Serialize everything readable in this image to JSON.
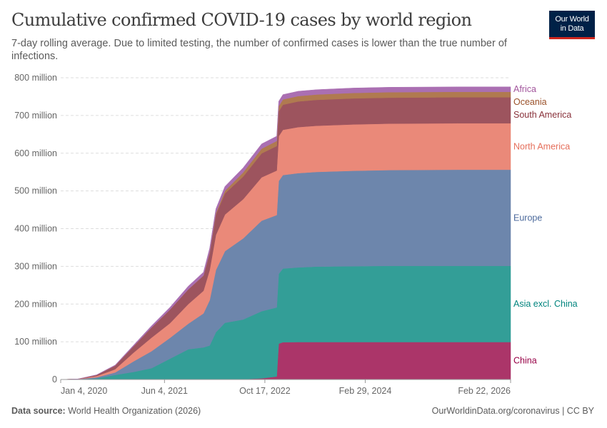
{
  "header": {
    "title": "Cumulative confirmed COVID-19 cases by world region",
    "subtitle": "7-day rolling average. Due to limited testing, the number of confirmed cases is lower than the true number of infections.",
    "logo_line1": "Our World",
    "logo_line2": "in Data"
  },
  "footer": {
    "source_label": "Data source:",
    "source": "World Health Organization (2026)",
    "url": "OurWorldinData.org/coronavirus | CC BY"
  },
  "chart_data": {
    "type": "area",
    "stacked": true,
    "title": "Cumulative confirmed COVID-19 cases by world region",
    "ylim": [
      0,
      800
    ],
    "y_unit": "million",
    "y_ticks": [
      {
        "value": 0,
        "label": "0"
      },
      {
        "value": 100,
        "label": "100 million"
      },
      {
        "value": 200,
        "label": "200 million"
      },
      {
        "value": 300,
        "label": "300 million"
      },
      {
        "value": 400,
        "label": "400 million"
      },
      {
        "value": 500,
        "label": "500 million"
      },
      {
        "value": 600,
        "label": "600 million"
      },
      {
        "value": 700,
        "label": "700 million"
      },
      {
        "value": 800,
        "label": "800 million"
      }
    ],
    "x_range": [
      "2020-01-04",
      "2026-02-22"
    ],
    "x_ticks": [
      {
        "date": "2020-01-04",
        "label": "Jan 4, 2020"
      },
      {
        "date": "2021-06-04",
        "label": "Jun 4, 2021"
      },
      {
        "date": "2022-10-17",
        "label": "Oct 17, 2022"
      },
      {
        "date": "2024-02-29",
        "label": "Feb 29, 2024"
      },
      {
        "date": "2026-02-22",
        "label": "Feb 22, 2026"
      }
    ],
    "grid": "horizontal dashed",
    "legend": "right (inline labels)",
    "x": [
      "2020-01-04",
      "2020-04-01",
      "2020-07-01",
      "2020-10-01",
      "2021-01-01",
      "2021-04-01",
      "2021-07-01",
      "2021-10-01",
      "2021-12-15",
      "2022-01-15",
      "2022-02-15",
      "2022-04-01",
      "2022-07-01",
      "2022-10-01",
      "2022-12-15",
      "2022-12-25",
      "2023-01-15",
      "2023-04-01",
      "2023-07-01",
      "2024-01-01",
      "2024-07-01",
      "2025-06-01",
      "2026-02-22"
    ],
    "series": [
      {
        "name": "China",
        "color": "#ab3569",
        "label_color": "#970046",
        "values": [
          0,
          0.08,
          0.08,
          0.09,
          0.1,
          0.1,
          0.1,
          0.1,
          0.1,
          0.1,
          0.15,
          0.3,
          1,
          3,
          8,
          95,
          99,
          99.2,
          99.3,
          99.3,
          99.3,
          99.3,
          99.3
        ]
      },
      {
        "name": "Asia excl. China",
        "color": "#339e97",
        "label_color": "#00847e",
        "values": [
          0,
          0.3,
          3,
          12,
          20,
          30,
          55,
          80,
          85,
          90,
          125,
          150,
          158,
          178,
          183,
          185,
          195,
          198,
          200,
          201,
          202,
          202,
          202
        ]
      },
      {
        "name": "Europe",
        "color": "#6d86ac",
        "label_color": "#4c6a9c",
        "values": [
          0,
          0.8,
          2.8,
          6.5,
          28,
          45,
          55,
          68,
          90,
          120,
          165,
          190,
          215,
          240,
          245,
          246,
          248,
          250,
          251,
          253,
          254,
          255,
          255
        ]
      },
      {
        "name": "North America",
        "color": "#ea8979",
        "label_color": "#e56e5a",
        "values": [
          0,
          0.2,
          3.2,
          8.5,
          23,
          36,
          39,
          52,
          60,
          80,
          93,
          97,
          104,
          115,
          118,
          119,
          120,
          122,
          122.5,
          123,
          123,
          123,
          123
        ]
      },
      {
        "name": "South America",
        "color": "#9d545e",
        "label_color": "#883039",
        "values": [
          0,
          0.03,
          2.8,
          9.5,
          17,
          27,
          36,
          39,
          40,
          45,
          54,
          56,
          60,
          63.5,
          65,
          66,
          66.5,
          68,
          68.5,
          69,
          69,
          69,
          69
        ]
      },
      {
        "name": "Oceania",
        "color": "#b07a50",
        "label_color": "#9a5129",
        "values": [
          0,
          0.01,
          0.01,
          0.03,
          0.04,
          0.05,
          0.06,
          0.2,
          0.4,
          2,
          4,
          7,
          11,
          12.5,
          13.5,
          13.8,
          14,
          14.2,
          14.3,
          14.4,
          14.5,
          14.5,
          14.5
        ]
      },
      {
        "name": "Africa",
        "color": "#aa6fb2",
        "label_color": "#a2559c",
        "values": [
          0,
          0.01,
          0.5,
          1.6,
          2.9,
          4.4,
          6,
          8.4,
          9,
          10.8,
          11.2,
          11.4,
          12.3,
          12.6,
          12.7,
          12.8,
          12.8,
          12.9,
          12.9,
          13,
          13,
          13,
          13
        ]
      }
    ]
  }
}
